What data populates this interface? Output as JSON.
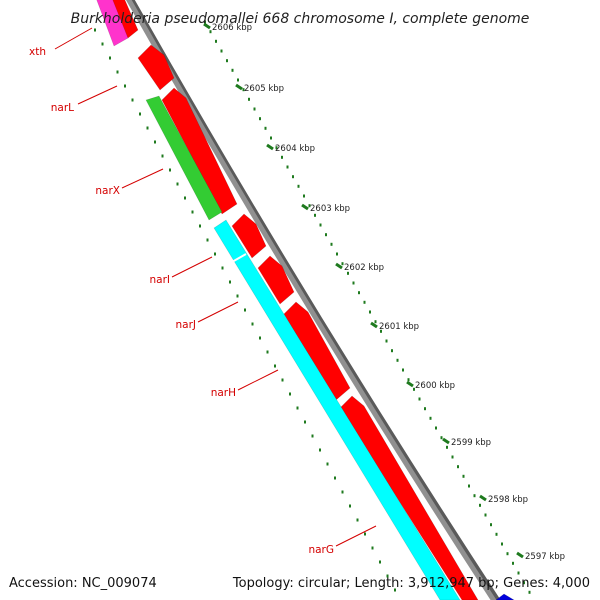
{
  "title": "Burkholderia pseudomallei 668 chromosome I, complete genome",
  "footer": {
    "accession": "Accession: NC_009074",
    "topology": "Topology: circular; Length: 3,912,947 bp; Genes: 4,000"
  },
  "colors": {
    "forward_gene": "#ff0000",
    "reverse_gene_green": "#33cc33",
    "reverse_gene_cyan": "#00ffff",
    "reverse_gene_magenta": "#ff33cc",
    "gene_label": "#d40000",
    "tick_mark": "#1e7a1e",
    "backbone": "#909090",
    "other_gene": "#0000dd"
  },
  "genes": [
    {
      "name": "xth"
    },
    {
      "name": "narL"
    },
    {
      "name": "narX"
    },
    {
      "name": "narI"
    },
    {
      "name": "narJ"
    },
    {
      "name": "narH"
    },
    {
      "name": "narG"
    }
  ],
  "ticks": [
    {
      "label": "2606 kbp"
    },
    {
      "label": "2605 kbp"
    },
    {
      "label": "2604 kbp"
    },
    {
      "label": "2603 kbp"
    },
    {
      "label": "2602 kbp"
    },
    {
      "label": "2601 kbp"
    },
    {
      "label": "2600 kbp"
    },
    {
      "label": "2599 kbp"
    },
    {
      "label": "2598 kbp"
    },
    {
      "label": "2597 kbp"
    }
  ]
}
